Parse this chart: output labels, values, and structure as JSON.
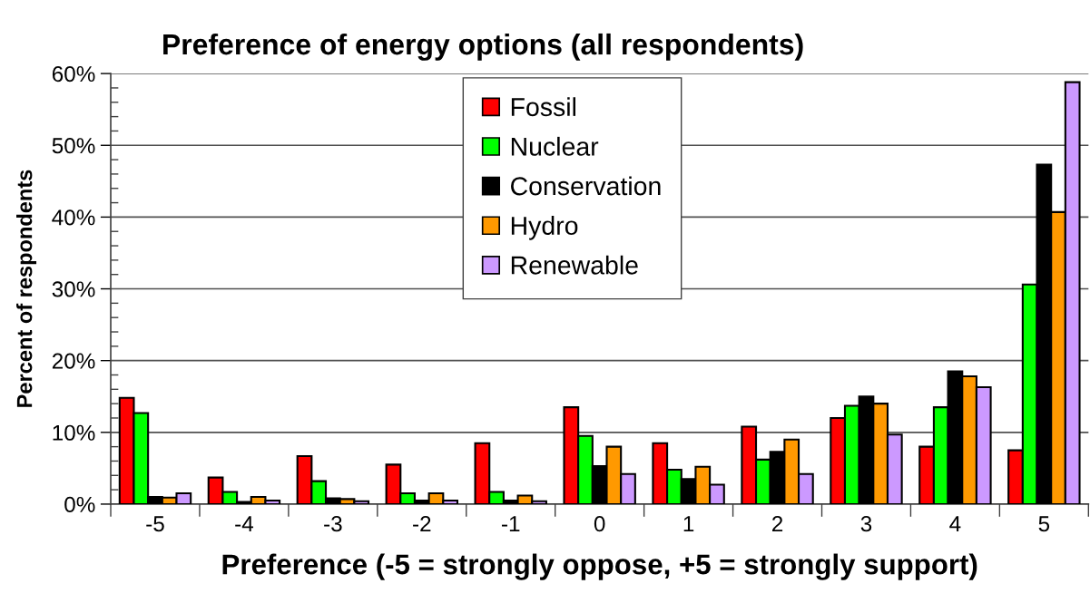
{
  "chart_data": {
    "type": "bar",
    "title": "Preference of energy options (all respondents)",
    "xlabel": "Preference (-5 = strongly oppose, +5 = strongly support)",
    "ylabel": "Percent of respondents",
    "categories": [
      "-5",
      "-4",
      "-3",
      "-2",
      "-1",
      "0",
      "1",
      "2",
      "3",
      "4",
      "5"
    ],
    "series": [
      {
        "name": "Fossil",
        "color": "#ff0000",
        "values": [
          14.8,
          3.7,
          6.7,
          5.5,
          8.5,
          13.5,
          8.5,
          10.8,
          12.0,
          8.0,
          7.5
        ]
      },
      {
        "name": "Nuclear",
        "color": "#00ff00",
        "values": [
          12.7,
          1.7,
          3.2,
          1.5,
          1.7,
          9.5,
          4.8,
          6.2,
          13.7,
          13.5,
          30.6
        ]
      },
      {
        "name": "Conservation",
        "color": "#000000",
        "values": [
          1.0,
          0.3,
          0.8,
          0.5,
          0.5,
          5.3,
          3.5,
          7.3,
          15.0,
          18.5,
          47.3
        ]
      },
      {
        "name": "Hydro",
        "color": "#ff9900",
        "values": [
          0.9,
          1.0,
          0.7,
          1.5,
          1.2,
          8.0,
          5.2,
          9.0,
          14.0,
          17.8,
          40.7
        ]
      },
      {
        "name": "Renewable",
        "color": "#cc99ff",
        "values": [
          1.5,
          0.5,
          0.4,
          0.5,
          0.4,
          4.2,
          2.7,
          4.2,
          9.7,
          16.3,
          58.8
        ]
      }
    ],
    "ylim": [
      0,
      60
    ],
    "yticks": [
      {
        "value": 0,
        "label": "0%"
      },
      {
        "value": 10,
        "label": "10%"
      },
      {
        "value": 20,
        "label": "20%"
      },
      {
        "value": 30,
        "label": "30%"
      },
      {
        "value": 40,
        "label": "40%"
      },
      {
        "value": 50,
        "label": "50%"
      },
      {
        "value": 60,
        "label": "60%"
      }
    ],
    "grid": "y",
    "legend": "top"
  }
}
